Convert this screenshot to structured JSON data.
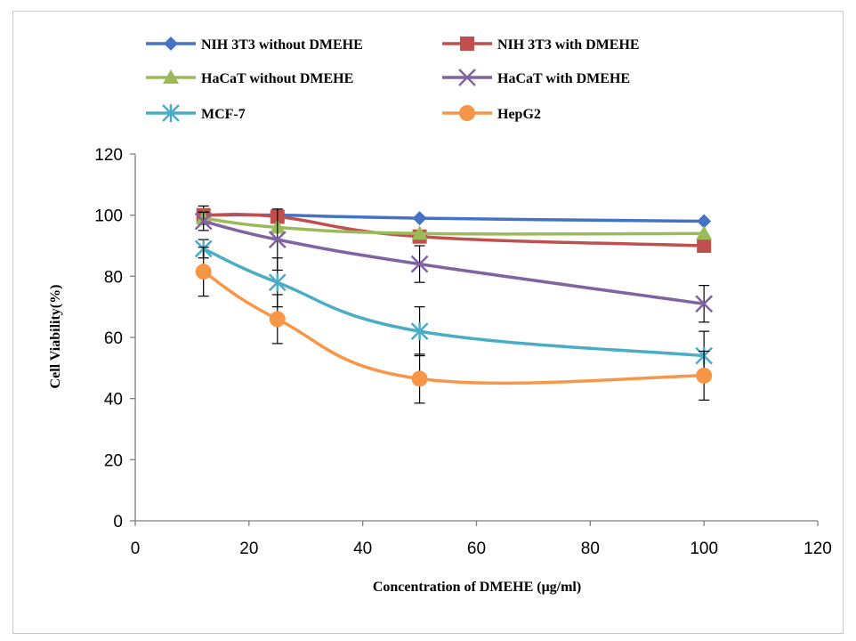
{
  "chart_data": {
    "type": "line",
    "title": "",
    "xlabel": "Concentration of DMEHE (μg/ml)",
    "ylabel": "Cell Viability(%)",
    "xlim": [
      0,
      120
    ],
    "ylim": [
      0,
      120
    ],
    "xticks": [
      0,
      20,
      40,
      60,
      80,
      100,
      120
    ],
    "yticks": [
      0,
      20,
      40,
      60,
      80,
      100,
      120
    ],
    "x": [
      12,
      25,
      50,
      100
    ],
    "grid": false,
    "legend_position": "top",
    "series": [
      {
        "name": "NIH 3T3  without DMEHE",
        "color": "#4472C4",
        "marker": "diamond",
        "values": [
          100,
          100,
          99,
          98
        ],
        "errors": [
          0,
          0,
          0,
          0
        ]
      },
      {
        "name": "NIH 3T3 with DMEHE",
        "color": "#C0504D",
        "marker": "square",
        "values": [
          100,
          99.5,
          93,
          90
        ],
        "errors": [
          3,
          0,
          0,
          0
        ]
      },
      {
        "name": "HaCaT without DMEHE",
        "color": "#9BBB59",
        "marker": "triangle",
        "values": [
          99,
          96,
          94,
          94
        ],
        "errors": [
          2,
          0,
          0,
          0
        ]
      },
      {
        "name": "HaCaT with DMEHE",
        "color": "#8064A2",
        "marker": "x",
        "values": [
          98,
          92,
          84,
          71
        ],
        "errors": [
          3,
          10,
          6,
          6
        ]
      },
      {
        "name": "MCF-7",
        "color": "#4BACC6",
        "marker": "star",
        "values": [
          89,
          78,
          62,
          54
        ],
        "errors": [
          3,
          8,
          8,
          8
        ]
      },
      {
        "name": "HepG2",
        "color": "#F79646",
        "marker": "circle",
        "values": [
          81.5,
          66,
          46.5,
          47.5
        ],
        "errors": [
          8,
          8,
          8,
          8
        ]
      }
    ]
  }
}
